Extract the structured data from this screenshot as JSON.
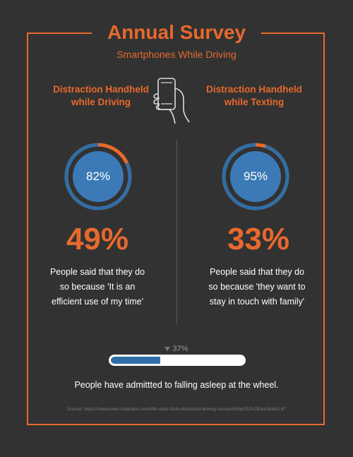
{
  "header": {
    "title": "Annual Survey",
    "subtitle": "Smartphones While Driving"
  },
  "colors": {
    "background": "#323232",
    "accent": "#e8692c",
    "ring_blue": "#2f6fa7",
    "ring_center": "#3b7ab6",
    "text": "#ffffff"
  },
  "icon": "hand-holding-phone-icon",
  "left": {
    "title": "Distraction Handheld while Driving",
    "ring_label": "82%",
    "big_pct": "49%",
    "description": "People said that they do so because 'It is an efficient use of my time'"
  },
  "right": {
    "title": "Distraction Handheld while Texting",
    "ring_label": "95%",
    "big_pct": "33%",
    "description": "People said that they do so because 'they want to stay in touch with family'"
  },
  "progress": {
    "label": "37%",
    "caption": "People have admittted to falling asleep at the wheel."
  },
  "source": "Source: https://newsroom.statefarm.com/8th-state-farm-distracted-driving-survey/#35pGSJVOEtoLEmkS.97",
  "chart_data": [
    {
      "type": "pie",
      "categories": [
        "Distraction Handheld while Driving"
      ],
      "values": [
        82
      ]
    },
    {
      "type": "pie",
      "categories": [
        "Distraction Handheld while Texting"
      ],
      "values": [
        95
      ]
    },
    {
      "type": "bar",
      "categories": [
        "People have admittted to falling asleep at the wheel."
      ],
      "values": [
        37
      ],
      "ylim": [
        0,
        100
      ]
    }
  ]
}
